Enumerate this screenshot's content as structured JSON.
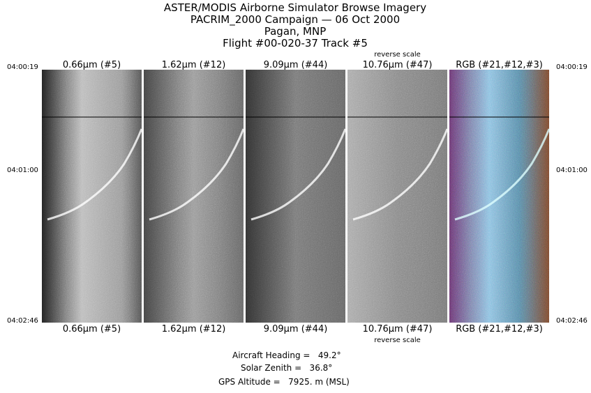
{
  "header": {
    "lines": [
      "ASTER/MODIS Airborne Simulator Browse Imagery",
      "PACRIM_2000 Campaign — 06 Oct 2000",
      "Pagan, MNP",
      "Flight #00-020-37 Track #5"
    ]
  },
  "panels": [
    {
      "label": "0.66μm (#5)"
    },
    {
      "label": "1.62μm (#12)"
    },
    {
      "label": "9.09μm (#44)"
    },
    {
      "label": "10.76μm (#47)",
      "note": "reverse scale"
    },
    {
      "label": "RGB (#21,#12,#3)"
    }
  ],
  "times": [
    "04:00:19",
    "04:01:00",
    "04:02:46"
  ],
  "footer": {
    "lines": [
      "Aircraft Heading =   49.2°",
      "Solar Zenith =   36.8°",
      "GPS Altitude =   7925. m (MSL)"
    ]
  }
}
